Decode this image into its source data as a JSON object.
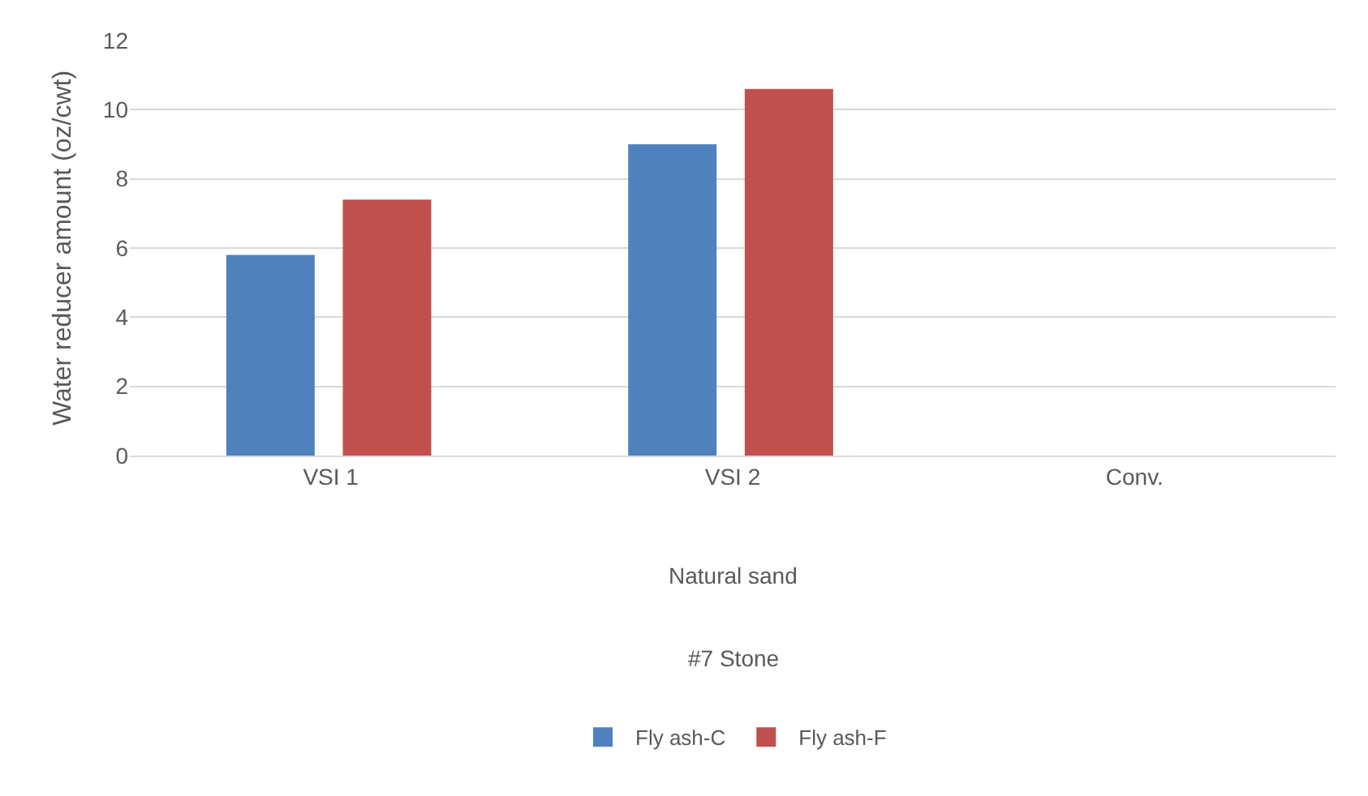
{
  "chart_data": {
    "type": "bar",
    "ylabel": "Water reducer amount (oz/cwt)",
    "categories": [
      "VSI 1",
      "VSI 2",
      "Conv."
    ],
    "series": [
      {
        "name": "Fly ash-C",
        "color": "#4f81bd",
        "values": [
          5.8,
          9.0,
          null
        ]
      },
      {
        "name": "Fly ash-F",
        "color": "#c0504d",
        "values": [
          7.4,
          10.6,
          null
        ]
      }
    ],
    "annotations": [
      "Natural sand",
      "#7 Stone"
    ],
    "ylim": [
      0,
      12
    ],
    "yticks": [
      0,
      2,
      4,
      6,
      8,
      10,
      12
    ],
    "grid": "y",
    "legend": "bottom"
  }
}
